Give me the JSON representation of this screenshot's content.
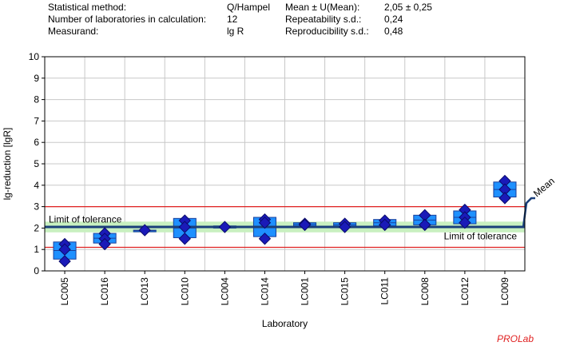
{
  "header": {
    "rows": [
      {
        "label": "Statistical method:",
        "value": "Q/Hampel",
        "label2": "Mean ± U(Mean):",
        "value2": "2,05 ± 0,25"
      },
      {
        "label": "Number of laboratories in calculation:",
        "value": "12",
        "label2": "Repeatability s.d.:",
        "value2": "0,24"
      },
      {
        "label": "Measurand:",
        "value": "lg R",
        "label2": "Reproducibility s.d.:",
        "value2": "0,48"
      }
    ]
  },
  "brand": "PROLab",
  "colors": {
    "box_fill": "#1e90ff",
    "box_stroke": "#1a3f9a",
    "marker": "#1a1ab8",
    "mean_line": "#1a3f7a",
    "tolerance_line": "#e02020",
    "band": "#c8f0c0",
    "grid": "#c8c8c8"
  },
  "chart_data": {
    "type": "box",
    "ylabel": "lg-reduction [lgR]",
    "xlabel": "Laboratory",
    "ylim": [
      0,
      10
    ],
    "yticks": [
      0,
      1,
      2,
      3,
      4,
      5,
      6,
      7,
      8,
      9,
      10
    ],
    "grid": true,
    "mean": 2.05,
    "mean_label": "Mean",
    "mean_uncertainty_band": [
      1.8,
      2.3
    ],
    "tolerance_upper": 3.0,
    "tolerance_lower": 1.1,
    "tolerance_label": "Limit of tolerance",
    "labs": [
      {
        "name": "LC005",
        "box": [
          0.55,
          1.35
        ],
        "points": [
          1.25,
          1.0,
          0.45
        ]
      },
      {
        "name": "LC016",
        "box": [
          1.3,
          1.75
        ],
        "points": [
          1.75,
          1.5,
          1.25
        ]
      },
      {
        "name": "LC013",
        "box": [
          1.85,
          1.9
        ],
        "points": [
          1.9
        ]
      },
      {
        "name": "LC010",
        "box": [
          1.55,
          2.45
        ],
        "points": [
          2.35,
          2.05,
          1.5
        ]
      },
      {
        "name": "LC004",
        "box": [
          2.0,
          2.1
        ],
        "points": [
          2.05
        ]
      },
      {
        "name": "LC014",
        "box": [
          1.6,
          2.5
        ],
        "points": [
          2.4,
          2.25,
          1.5
        ]
      },
      {
        "name": "LC001",
        "box": [
          2.1,
          2.25
        ],
        "points": [
          2.2,
          2.15
        ]
      },
      {
        "name": "LC015",
        "box": [
          2.05,
          2.25
        ],
        "points": [
          2.2,
          2.05
        ]
      },
      {
        "name": "LC011",
        "box": [
          2.1,
          2.4
        ],
        "points": [
          2.35,
          2.15
        ]
      },
      {
        "name": "LC008",
        "box": [
          2.15,
          2.6
        ],
        "points": [
          2.6,
          2.15
        ]
      },
      {
        "name": "LC012",
        "box": [
          2.2,
          2.8
        ],
        "points": [
          2.85,
          2.5,
          2.25
        ]
      },
      {
        "name": "LC009",
        "box": [
          3.45,
          4.15
        ],
        "points": [
          4.2,
          3.8,
          3.4
        ]
      }
    ]
  }
}
